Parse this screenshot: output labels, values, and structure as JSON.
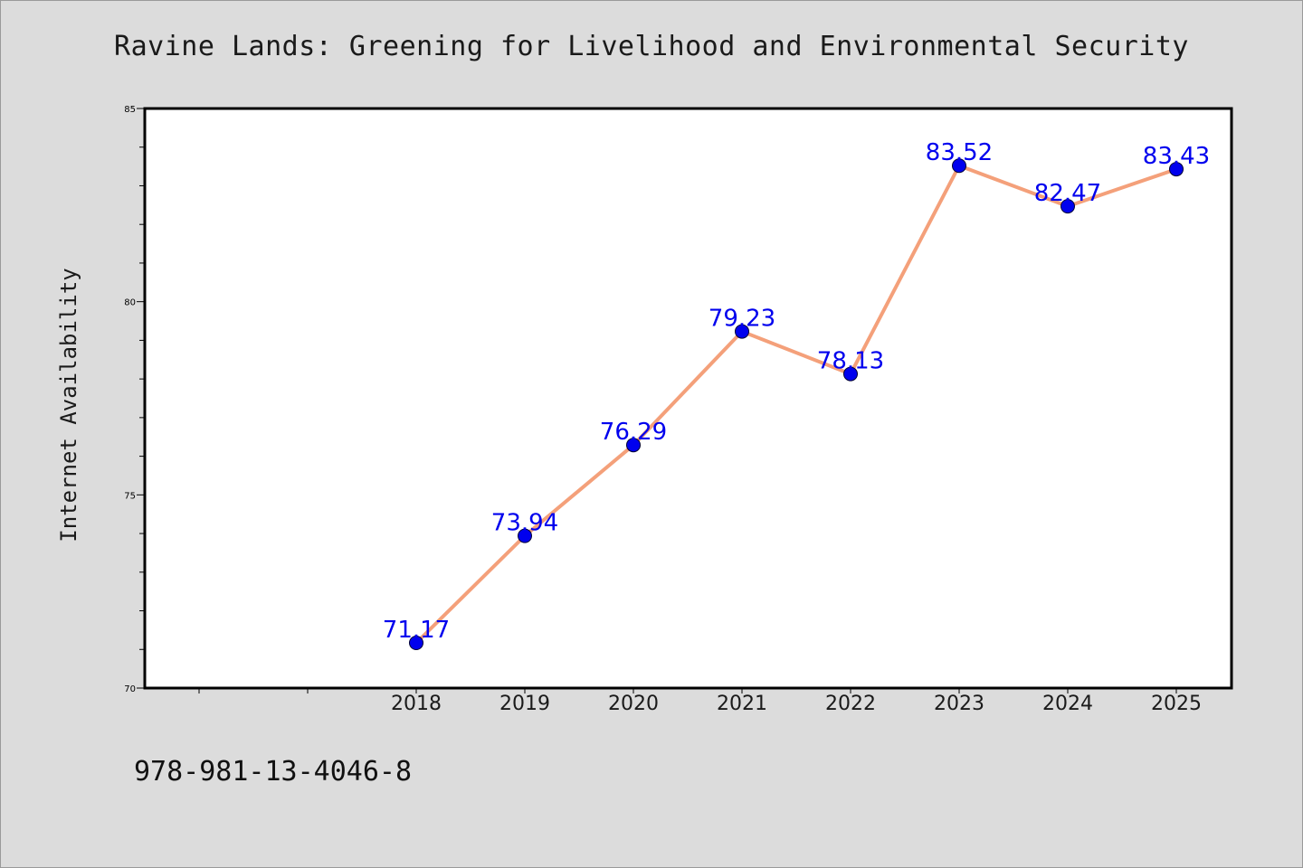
{
  "title": "Ravine Lands: Greening for Livelihood and Environmental Security",
  "footer": "978-981-13-4046-8",
  "colors": {
    "background": "#dcdcdc",
    "plot_background": "#ffffff",
    "line": "#f4a07a",
    "marker": "#0000ee",
    "data_label": "#0000ee"
  },
  "chart_data": {
    "type": "line",
    "title": "Ravine Lands: Greening for Livelihood and Environmental Security",
    "xlabel": "",
    "ylabel": "Internet Availability",
    "categories": [
      "2018",
      "2019",
      "2020",
      "2021",
      "2022",
      "2023",
      "2024",
      "2025"
    ],
    "x_slots_before_first": 2,
    "series": [
      {
        "values": [
          71.17,
          73.94,
          76.29,
          79.23,
          78.13,
          83.52,
          82.47,
          83.43
        ],
        "labels": [
          "71.17",
          "73.94",
          "76.29",
          "79.23",
          "78.13",
          "83.52",
          "82.47",
          "83.43"
        ]
      }
    ],
    "ylim": [
      70,
      85
    ],
    "yticks": [
      70,
      75,
      80,
      85
    ],
    "ytick_labels": [
      "70",
      "75",
      "80",
      "85"
    ],
    "y_minor_step": 1,
    "grid": false,
    "legend": "none"
  }
}
